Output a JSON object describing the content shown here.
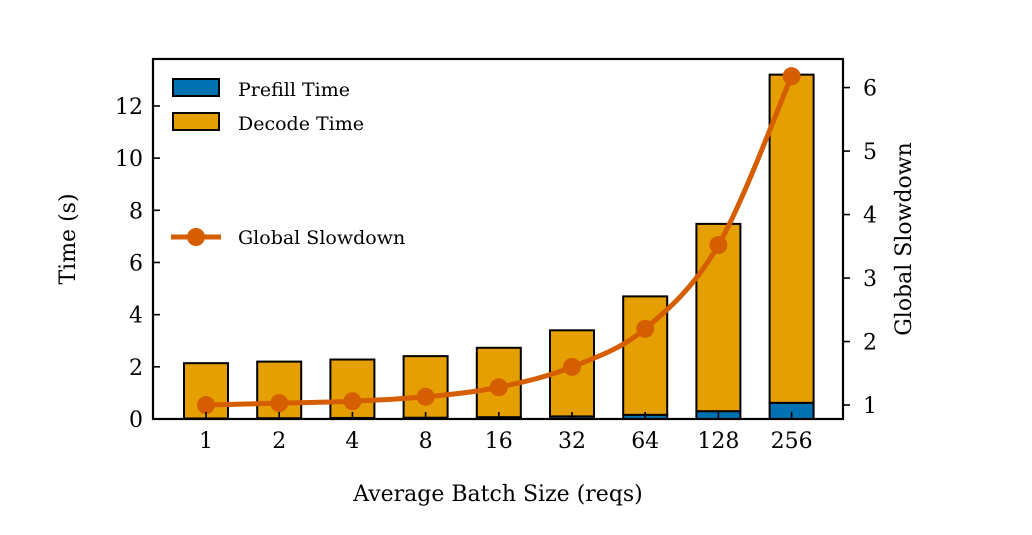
{
  "chart_data": {
    "type": "bar",
    "categories": [
      "1",
      "2",
      "4",
      "8",
      "16",
      "32",
      "64",
      "128",
      "256"
    ],
    "xlabel": "Average Batch Size (reqs)",
    "ylabel": "Time (s)",
    "y2label": "Global Slowdown",
    "ylim": [
      0,
      13.8
    ],
    "y2lim": [
      0.78,
      6.45
    ],
    "yticks": [
      0,
      2,
      4,
      6,
      8,
      10,
      12
    ],
    "y2ticks": [
      1,
      2,
      3,
      4,
      5,
      6
    ],
    "grid": false,
    "legend_placement": "upper-left",
    "series": [
      {
        "name": "Prefill Time",
        "kind": "bar",
        "stacked": true,
        "color": "#0072B2",
        "values": [
          0.02,
          0.03,
          0.04,
          0.05,
          0.07,
          0.1,
          0.16,
          0.3,
          0.62
        ]
      },
      {
        "name": "Decode Time",
        "kind": "bar",
        "stacked": true,
        "color": "#E69F00",
        "values": [
          2.12,
          2.17,
          2.24,
          2.36,
          2.66,
          3.3,
          4.54,
          7.18,
          12.58
        ]
      },
      {
        "name": "Global Slowdown",
        "kind": "line",
        "axis": "right",
        "color": "#D55E00",
        "values": [
          1.0,
          1.03,
          1.06,
          1.13,
          1.28,
          1.6,
          2.2,
          3.52,
          6.18
        ]
      }
    ]
  }
}
